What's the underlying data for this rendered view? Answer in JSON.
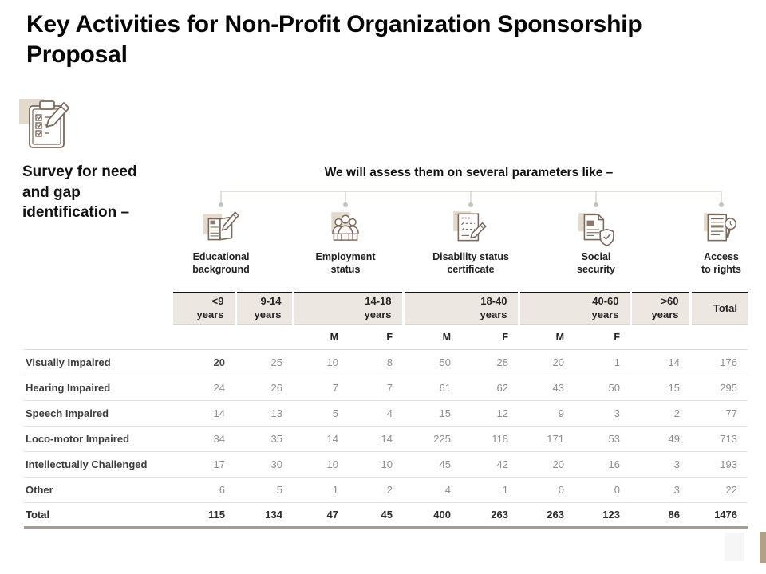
{
  "slide": {
    "title": "Key Activities for Non-Profit Organization Sponsorship Proposal",
    "left_note": "Survey for need and gap identification –",
    "section_heading": "We will assess them on several parameters like –"
  },
  "parameters": [
    {
      "icon": "book-pencil-icon",
      "line1": "Educational",
      "line2": "background"
    },
    {
      "icon": "people-group-icon",
      "line1": "Employment",
      "line2": "status"
    },
    {
      "icon": "certificate-pencil-icon",
      "line1": "Disability status",
      "line2": "certificate"
    },
    {
      "icon": "document-shield-icon",
      "line1": "Social",
      "line2": "security"
    },
    {
      "icon": "document-magnifier-icon",
      "line1": "Access",
      "line2": "to rights"
    }
  ],
  "table": {
    "group_headers": [
      {
        "line1": "<9",
        "line2": "years",
        "span": 1
      },
      {
        "line1": "9-14",
        "line2": "years",
        "span": 1
      },
      {
        "line1": "14-18",
        "line2": "years",
        "span": 2
      },
      {
        "line1": "18-40",
        "line2": "years",
        "span": 2
      },
      {
        "line1": "40-60",
        "line2": "years",
        "span": 2
      },
      {
        "line1": ">60",
        "line2": "years",
        "span": 1
      },
      {
        "line1": "Total",
        "line2": "",
        "span": 1
      }
    ],
    "sub_headers": [
      "",
      "",
      "M",
      "F",
      "M",
      "F",
      "M",
      "F",
      "",
      ""
    ],
    "rows": [
      {
        "label": "Visually Impaired",
        "values": [
          20,
          25,
          10,
          8,
          50,
          28,
          20,
          1,
          14,
          176
        ]
      },
      {
        "label": "Hearing Impaired",
        "values": [
          24,
          26,
          7,
          7,
          61,
          62,
          43,
          50,
          15,
          295
        ]
      },
      {
        "label": "Speech Impaired",
        "values": [
          14,
          13,
          5,
          4,
          15,
          12,
          9,
          3,
          2,
          77
        ]
      },
      {
        "label": "Loco-motor Impaired",
        "values": [
          34,
          35,
          14,
          14,
          225,
          118,
          171,
          53,
          49,
          713
        ]
      },
      {
        "label": "Intellectually Challenged",
        "values": [
          17,
          30,
          10,
          10,
          45,
          42,
          20,
          16,
          3,
          193
        ]
      },
      {
        "label": "Other",
        "values": [
          6,
          5,
          1,
          2,
          4,
          1,
          0,
          0,
          3,
          22
        ]
      }
    ],
    "total_row": {
      "label": "Total",
      "values": [
        115,
        134,
        47,
        45,
        400,
        263,
        263,
        123,
        86,
        1476
      ]
    },
    "emphasis_cells": [
      [
        0,
        0
      ]
    ]
  },
  "colors": {
    "accent_beige": "#e3d9cc",
    "icon_stroke": "#7a695c",
    "icon_fill_brown": "#8a7a6a",
    "table_header_bg": "#ece7e1",
    "table_top_border": "#141414",
    "total_bottom_border": "#a49e94",
    "value_gray": "#8d8d8d",
    "connector_gray": "#d0ccc7",
    "decoration_tan": "#b2a189",
    "decoration_gray": "#f6f6f6"
  }
}
